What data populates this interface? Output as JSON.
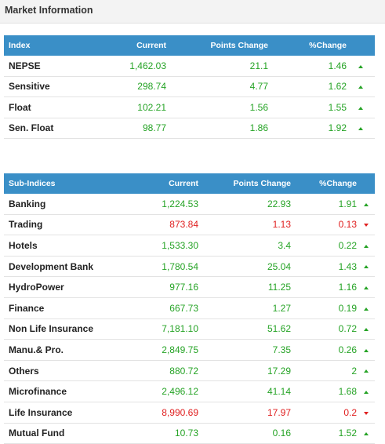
{
  "panel": {
    "title": "Market Information"
  },
  "index_table": {
    "headers": [
      "Index",
      "Current",
      "Points Change",
      "%Change"
    ],
    "rows": [
      {
        "name": "NEPSE",
        "current": "1,462.03",
        "points": "21.1",
        "pct": "1.46",
        "dir": "up"
      },
      {
        "name": "Sensitive",
        "current": "298.74",
        "points": "4.77",
        "pct": "1.62",
        "dir": "up"
      },
      {
        "name": "Float",
        "current": "102.21",
        "points": "1.56",
        "pct": "1.55",
        "dir": "up"
      },
      {
        "name": "Sen. Float",
        "current": "98.77",
        "points": "1.86",
        "pct": "1.92",
        "dir": "up"
      }
    ]
  },
  "subindex_table": {
    "headers": [
      "Sub-Indices",
      "Current",
      "Points Change",
      "%Change"
    ],
    "rows": [
      {
        "name": "Banking",
        "current": "1,224.53",
        "points": "22.93",
        "pct": "1.91",
        "dir": "up"
      },
      {
        "name": "Trading",
        "current": "873.84",
        "points": "1.13",
        "pct": "0.13",
        "dir": "down"
      },
      {
        "name": "Hotels",
        "current": "1,533.30",
        "points": "3.4",
        "pct": "0.22",
        "dir": "up"
      },
      {
        "name": "Development Bank",
        "current": "1,780.54",
        "points": "25.04",
        "pct": "1.43",
        "dir": "up"
      },
      {
        "name": "HydroPower",
        "current": "977.16",
        "points": "11.25",
        "pct": "1.16",
        "dir": "up"
      },
      {
        "name": "Finance",
        "current": "667.73",
        "points": "1.27",
        "pct": "0.19",
        "dir": "up"
      },
      {
        "name": "Non Life Insurance",
        "current": "7,181.10",
        "points": "51.62",
        "pct": "0.72",
        "dir": "up"
      },
      {
        "name": "Manu.& Pro.",
        "current": "2,849.75",
        "points": "7.35",
        "pct": "0.26",
        "dir": "up"
      },
      {
        "name": "Others",
        "current": "880.72",
        "points": "17.29",
        "pct": "2",
        "dir": "up"
      },
      {
        "name": "Microfinance",
        "current": "2,496.12",
        "points": "41.14",
        "pct": "1.68",
        "dir": "up"
      },
      {
        "name": "Life Insurance",
        "current": "8,990.69",
        "points": "17.97",
        "pct": "0.2",
        "dir": "down"
      },
      {
        "name": "Mutual Fund",
        "current": "10.73",
        "points": "0.16",
        "pct": "1.52",
        "dir": "up"
      }
    ]
  },
  "colors": {
    "header_bg": "#3a8fc7",
    "up": "#25a325",
    "down": "#e02020"
  },
  "icons": {
    "up": "triangle-up-icon",
    "down": "triangle-down-icon"
  }
}
